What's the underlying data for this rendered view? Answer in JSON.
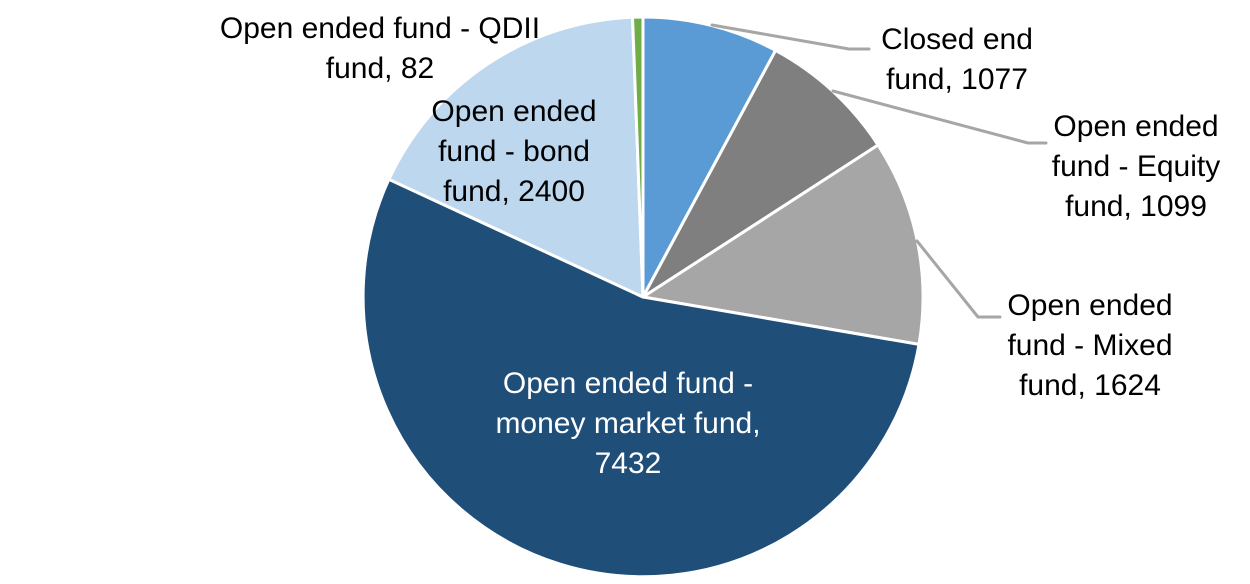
{
  "chart_data": {
    "type": "pie",
    "title": "",
    "legend": "none",
    "label_format": "category, value",
    "direction": "clockwise",
    "start_angle_deg": 0,
    "background": "#FFFFFF",
    "leader_line_color": "#A6A6A6",
    "slice_border_color": "#FFFFFF",
    "slices": [
      {
        "name": "Closed end fund",
        "value": 1077,
        "color": "#5B9BD5",
        "label_color": "#000000",
        "label_lines": [
          "Closed end",
          "fund, 1077"
        ]
      },
      {
        "name": "Open ended fund - Equity fund",
        "value": 1099,
        "color": "#7F7F7F",
        "label_color": "#000000",
        "label_lines": [
          "Open ended",
          "fund - Equity",
          "fund, 1099"
        ]
      },
      {
        "name": "Open ended fund - Mixed fund",
        "value": 1624,
        "color": "#A6A6A6",
        "label_color": "#000000",
        "label_lines": [
          "Open ended",
          "fund - Mixed",
          "fund, 1624"
        ]
      },
      {
        "name": "Open ended fund - money market fund",
        "value": 7432,
        "color": "#1F4E79",
        "label_color": "#FFFFFF",
        "label_lines": [
          "Open ended fund -",
          "money market fund,",
          "7432"
        ]
      },
      {
        "name": "Open ended fund - bond fund",
        "value": 2400,
        "color": "#BDD7EE",
        "label_color": "#000000",
        "label_lines": [
          "Open ended",
          "fund - bond",
          "fund, 2400"
        ]
      },
      {
        "name": "Open ended fund - QDII fund",
        "value": 82,
        "color": "#70AD47",
        "label_color": "#000000",
        "label_lines": [
          "Open ended fund - QDII",
          "fund, 82"
        ]
      }
    ]
  }
}
